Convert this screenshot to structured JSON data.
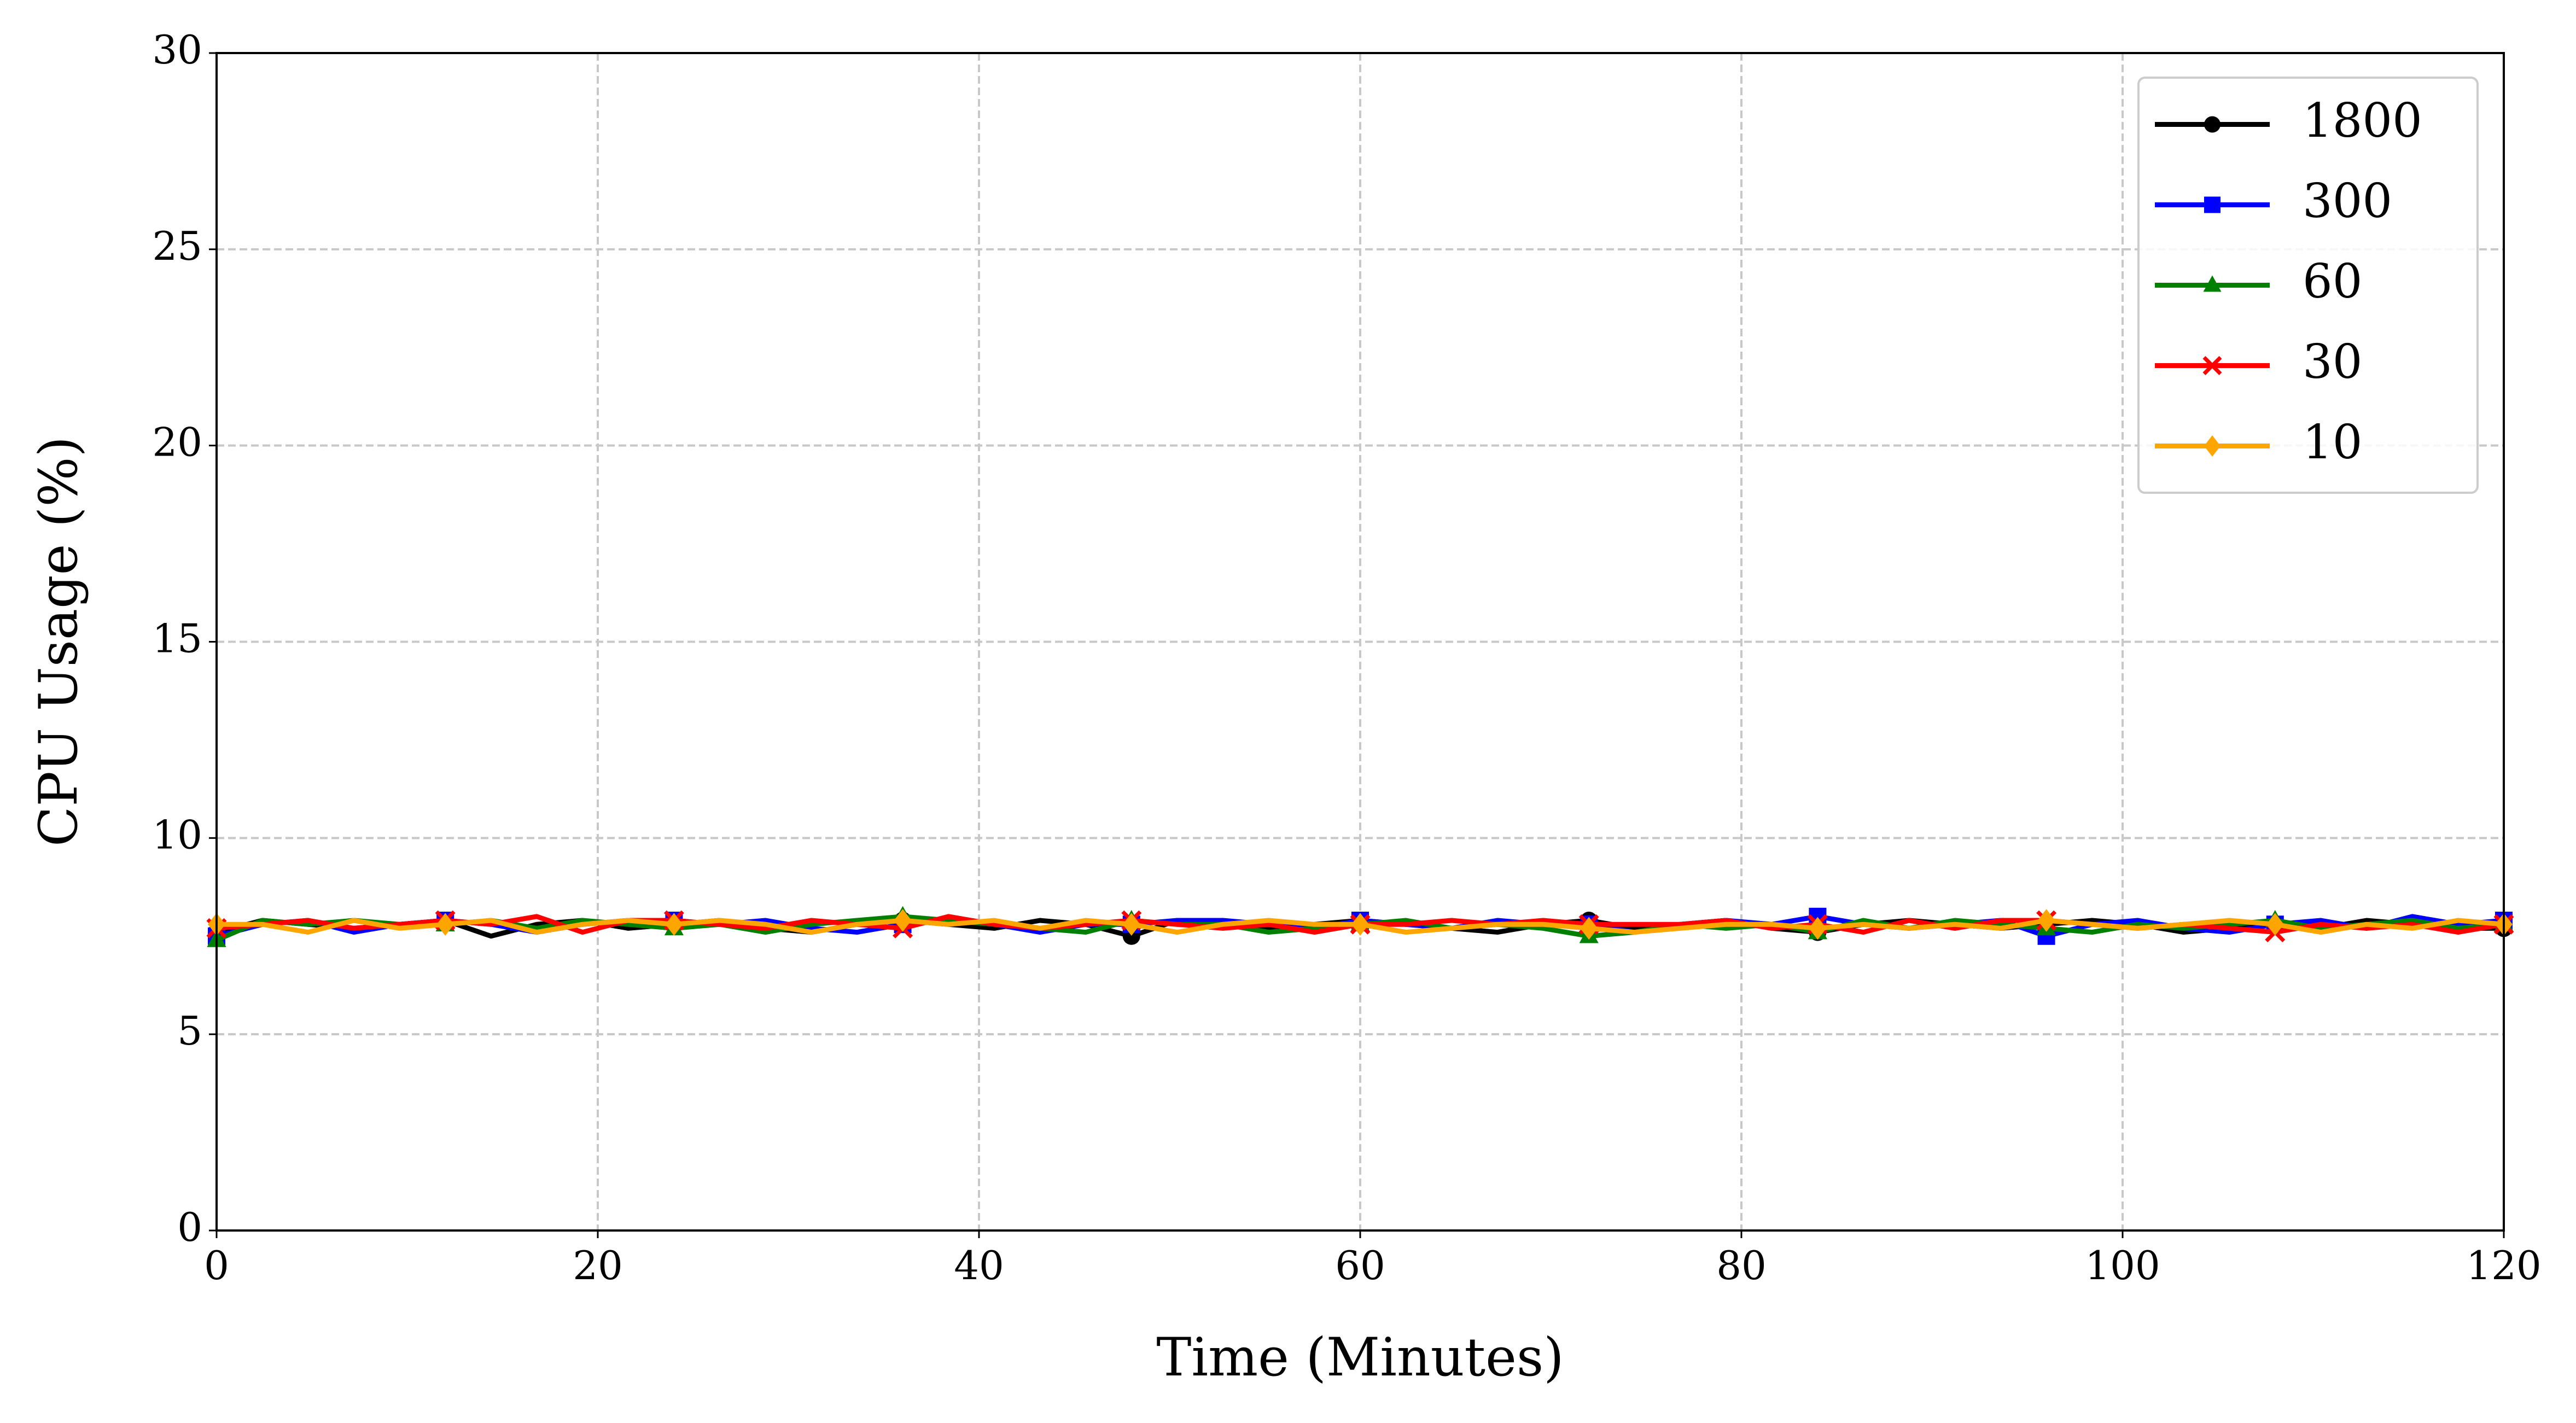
{
  "chart_data": {
    "type": "line",
    "xlabel": "Time (Minutes)",
    "ylabel": "CPU Usage (%)",
    "x": [
      0,
      2.4,
      4.8,
      7.2,
      9.6,
      12,
      14.4,
      16.8,
      19.2,
      21.6,
      24,
      26.4,
      28.8,
      31.2,
      33.6,
      36,
      38.4,
      40.8,
      43.2,
      45.6,
      48,
      50.4,
      52.8,
      55.2,
      57.6,
      60,
      62.4,
      64.8,
      67.2,
      69.6,
      72,
      74.4,
      76.8,
      79.2,
      81.6,
      84,
      86.4,
      88.8,
      91.2,
      93.6,
      96,
      98.4,
      100.8,
      103.2,
      105.6,
      108,
      110.4,
      112.8,
      115.2,
      117.6,
      120
    ],
    "markevery": 5,
    "series": [
      {
        "name": "1800",
        "color": "#000000",
        "marker": "circle",
        "values": [
          7.6,
          7.9,
          7.8,
          7.7,
          7.8,
          7.9,
          7.5,
          7.8,
          7.9,
          7.7,
          7.8,
          7.9,
          7.7,
          7.6,
          7.8,
          7.9,
          7.8,
          7.7,
          7.9,
          7.8,
          7.5,
          7.9,
          7.8,
          7.7,
          7.8,
          7.9,
          7.8,
          7.7,
          7.6,
          7.8,
          7.9,
          7.7,
          7.8,
          7.9,
          7.7,
          7.6,
          7.8,
          7.9,
          7.8,
          7.7,
          7.8,
          7.9,
          7.8,
          7.6,
          7.7,
          7.8,
          7.7,
          7.9,
          7.8,
          7.7,
          7.7
        ]
      },
      {
        "name": "300",
        "color": "#0000ff",
        "marker": "square",
        "values": [
          7.5,
          7.8,
          7.9,
          7.6,
          7.8,
          7.9,
          7.8,
          7.6,
          7.8,
          7.9,
          7.9,
          7.8,
          7.9,
          7.7,
          7.6,
          7.8,
          7.9,
          7.8,
          7.6,
          7.8,
          7.8,
          7.9,
          7.9,
          7.8,
          7.7,
          7.9,
          7.8,
          7.7,
          7.9,
          7.8,
          7.8,
          7.6,
          7.8,
          7.9,
          7.8,
          8.0,
          7.8,
          7.7,
          7.8,
          7.9,
          7.5,
          7.8,
          7.9,
          7.7,
          7.6,
          7.8,
          7.9,
          7.7,
          8.0,
          7.8,
          7.9
        ]
      },
      {
        "name": "60",
        "color": "#008000",
        "marker": "triangle",
        "values": [
          7.4,
          7.9,
          7.8,
          7.9,
          7.8,
          7.8,
          7.9,
          7.7,
          7.9,
          7.8,
          7.7,
          7.8,
          7.6,
          7.8,
          7.9,
          8.0,
          7.9,
          7.8,
          7.7,
          7.6,
          7.9,
          7.8,
          7.8,
          7.6,
          7.7,
          7.8,
          7.9,
          7.7,
          7.8,
          7.7,
          7.5,
          7.6,
          7.8,
          7.7,
          7.8,
          7.6,
          7.9,
          7.7,
          7.9,
          7.8,
          7.7,
          7.6,
          7.8,
          7.7,
          7.8,
          7.9,
          7.7,
          7.8,
          7.9,
          7.7,
          7.8
        ]
      },
      {
        "name": "30",
        "color": "#ff0000",
        "marker": "x",
        "values": [
          7.7,
          7.8,
          7.9,
          7.7,
          7.8,
          7.9,
          7.8,
          8.0,
          7.6,
          7.9,
          7.9,
          7.8,
          7.7,
          7.9,
          7.8,
          7.7,
          8.0,
          7.8,
          7.7,
          7.8,
          7.9,
          7.8,
          7.7,
          7.8,
          7.6,
          7.8,
          7.8,
          7.9,
          7.8,
          7.9,
          7.8,
          7.8,
          7.8,
          7.9,
          7.7,
          7.8,
          7.6,
          7.9,
          7.7,
          7.9,
          7.9,
          7.8,
          7.7,
          7.8,
          7.7,
          7.6,
          7.8,
          7.7,
          7.8,
          7.6,
          7.8
        ]
      },
      {
        "name": "10",
        "color": "#ffa500",
        "marker": "diamond",
        "values": [
          7.8,
          7.8,
          7.6,
          7.9,
          7.7,
          7.8,
          7.9,
          7.6,
          7.8,
          7.9,
          7.8,
          7.9,
          7.8,
          7.6,
          7.8,
          7.9,
          7.8,
          7.9,
          7.7,
          7.9,
          7.8,
          7.6,
          7.8,
          7.9,
          7.8,
          7.8,
          7.6,
          7.7,
          7.8,
          7.8,
          7.7,
          7.6,
          7.7,
          7.8,
          7.8,
          7.7,
          7.8,
          7.7,
          7.8,
          7.7,
          7.9,
          7.8,
          7.7,
          7.8,
          7.9,
          7.8,
          7.6,
          7.8,
          7.7,
          7.9,
          7.8
        ]
      }
    ],
    "xlim": [
      0,
      120
    ],
    "xticks": [
      0,
      20,
      40,
      60,
      80,
      100,
      120
    ],
    "ylim": [
      0,
      30
    ],
    "yticks": [
      0,
      5,
      10,
      15,
      20,
      25,
      30
    ],
    "grid": true,
    "legend": "upper right"
  }
}
